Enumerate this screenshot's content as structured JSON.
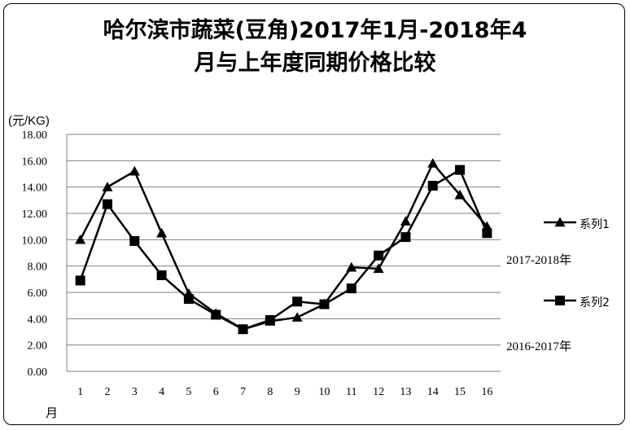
{
  "chart_data": {
    "type": "line",
    "title_line1": "哈尔滨市蔬菜(豆角)2017年1月-2018年4",
    "title_line2": "月与上年度同期价格比较",
    "ylabel": "(元/KG)",
    "xlabel": "月",
    "ylim": [
      0,
      18
    ],
    "ytick_labels": [
      "0.00",
      "2.00",
      "4.00",
      "6.00",
      "8.00",
      "10.00",
      "12.00",
      "14.00",
      "16.00",
      "18.00"
    ],
    "categories": [
      "1",
      "2",
      "3",
      "4",
      "5",
      "6",
      "7",
      "8",
      "9",
      "10",
      "11",
      "12",
      "13",
      "14",
      "15",
      "16"
    ],
    "grid": true,
    "legend_position": "right",
    "series": [
      {
        "name": "系列1",
        "period": "2017-2018年",
        "marker": "triangle",
        "values": [
          10.0,
          14.0,
          15.2,
          10.5,
          5.9,
          4.4,
          3.2,
          3.8,
          4.1,
          5.1,
          7.9,
          7.8,
          11.4,
          15.8,
          13.4,
          11.0
        ]
      },
      {
        "name": "系列2",
        "period": "2016-2017年",
        "marker": "square",
        "values": [
          6.9,
          12.7,
          9.9,
          7.3,
          5.5,
          4.3,
          3.2,
          3.9,
          5.3,
          5.1,
          6.3,
          8.8,
          10.2,
          14.1,
          15.3,
          10.5
        ]
      }
    ]
  },
  "colors": {
    "line": "#000000",
    "grid": "#808080",
    "background": "#ffffff"
  }
}
